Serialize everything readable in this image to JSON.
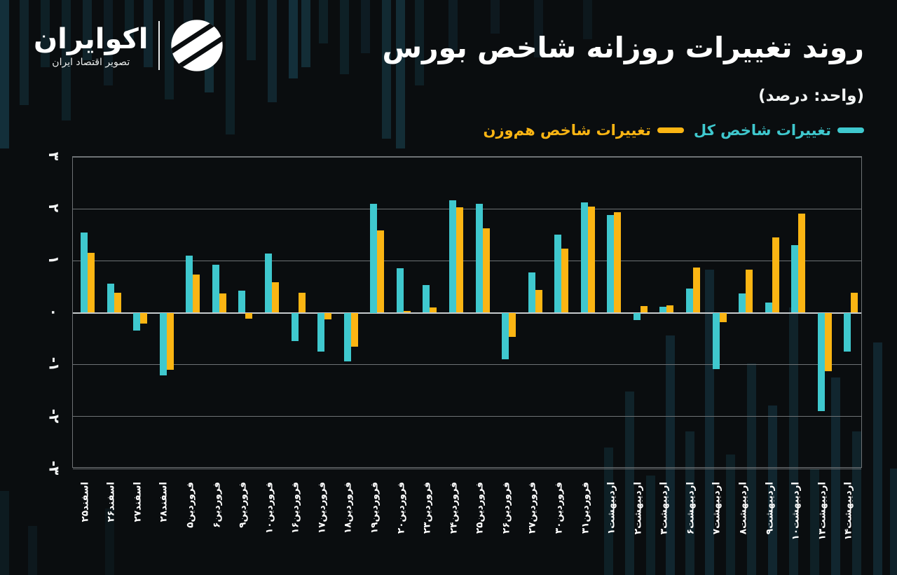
{
  "logo": {
    "name": "اکوایران",
    "tagline": "تصویر اقتصاد ایران"
  },
  "header": {
    "title": "روند تغییرات روزانه شاخص بورس",
    "unit_note": "(واحد: درصد)"
  },
  "legend": {
    "items": [
      {
        "label": "تغییرات شاخص کل",
        "color": "#3fc8ce"
      },
      {
        "label": "تغییرات شاخص هم‌وزن",
        "color": "#fbb513"
      }
    ]
  },
  "colors": {
    "background": "#0a0d0f",
    "stripe": "#1c4d5e",
    "grid": "#6e7275",
    "zero_line": "#c6cacc",
    "total_index": "#3fc8ce",
    "equal_weight_index": "#fbb513"
  },
  "chart_data": {
    "type": "bar",
    "title": "روند تغییرات روزانه شاخص بورس",
    "unit": "درصد",
    "xlabel": "",
    "ylabel": "",
    "ylim": [
      -3,
      3
    ],
    "grid": true,
    "legend_position": "top-right",
    "yticks": [
      3,
      2,
      1,
      0,
      -1,
      -2,
      -3
    ],
    "ytick_labels": [
      "۳",
      "۲",
      "۱",
      "۰",
      "-۱",
      "-۲",
      "-۳"
    ],
    "categories": [
      "اسفند۲۵",
      "اسفند۲۶",
      "اسفند۲۷",
      "اسفند۲۸",
      "فروردین۵",
      "فروردین۶",
      "فروردین۹",
      "فروردین۱۰",
      "فروردین۱۶",
      "فروردین۱۷",
      "فروردین۱۸",
      "فروردین۱۹",
      "فروردین۲۰",
      "فروردین۲۳",
      "فروردین۲۴",
      "فروردین۲۵",
      "فروردین۲۶",
      "فروردین۲۷",
      "فروردین۳۰",
      "فروردین۳۱",
      "اردیبهشت۱",
      "اردیبهشت۲",
      "اردیبهشت۳",
      "اردیبهشت۶",
      "اردیبهشت۷",
      "اردیبهشت۸",
      "اردیبهشت۹",
      "اردیبهشت۱۰",
      "اردیبهشت۱۳",
      "اردیبهشت۱۴"
    ],
    "series": [
      {
        "name": "تغییرات شاخص کل",
        "color": "#3fc8ce",
        "values": [
          1.55,
          0.56,
          -0.34,
          -1.21,
          1.1,
          0.92,
          0.42,
          1.14,
          -0.54,
          -0.75,
          -0.94,
          2.1,
          0.85,
          0.53,
          2.16,
          2.09,
          -0.89,
          0.78,
          1.51,
          2.12,
          1.88,
          -0.14,
          0.11,
          0.46,
          -1.08,
          0.37,
          0.2,
          1.3,
          -1.89,
          -0.75
        ]
      },
      {
        "name": "تغییرات شاخص هم‌وزن",
        "color": "#fbb513",
        "values": [
          1.15,
          0.38,
          -0.21,
          -1.1,
          0.73,
          0.37,
          -0.11,
          0.58,
          0.38,
          -0.13,
          -0.65,
          1.58,
          0.03,
          0.1,
          2.03,
          1.62,
          -0.47,
          0.44,
          1.23,
          2.04,
          1.93,
          0.13,
          0.14,
          0.87,
          -0.18,
          0.83,
          1.45,
          1.91,
          -1.12,
          0.38
        ]
      }
    ]
  }
}
